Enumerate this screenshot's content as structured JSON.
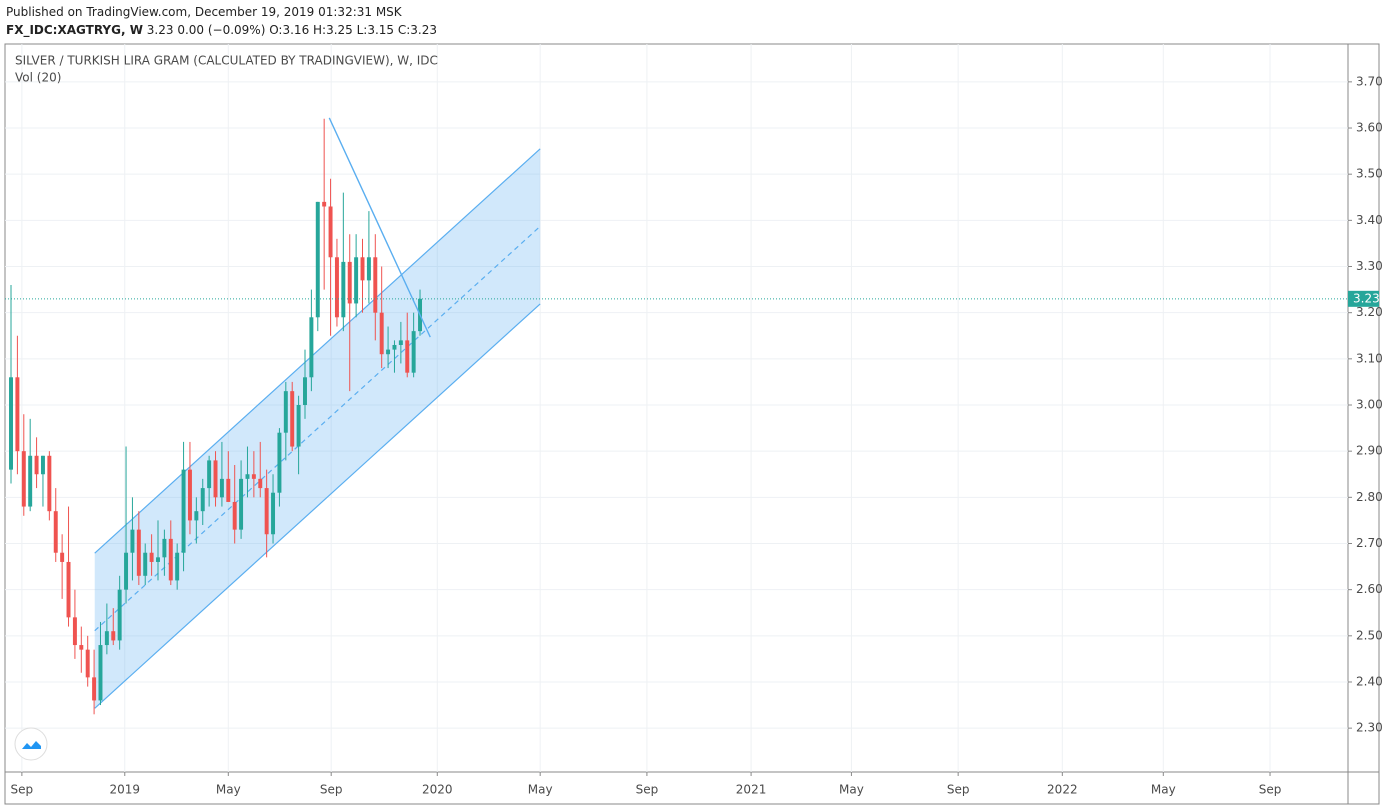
{
  "header": {
    "published": "Published on TradingView.com, December 19, 2019 01:32:31 MSK",
    "symbol": "FX_IDC:XAGTRYG, W",
    "quote": "3.23 0.00 (−0.09%) O:3.16 H:3.25 L:3.15 C:3.23"
  },
  "chart_data": {
    "type": "candlestick",
    "title": "SILVER / TURKISH LIRA GRAM (CALCULATED BY TRADINGVIEW), W, IDC",
    "subtitle": "Vol (20)",
    "up_color": "#26a69a",
    "down_color": "#ef5350",
    "grid": true,
    "open": [
      2.86,
      3.06,
      2.9,
      2.78,
      2.89,
      2.85,
      2.89,
      2.77,
      2.68,
      2.66,
      2.54,
      2.48,
      2.47,
      2.41,
      2.36,
      2.48,
      2.51,
      2.49,
      2.6,
      2.68,
      2.73,
      2.63,
      2.68,
      2.66,
      2.67,
      2.71,
      2.62,
      2.68,
      2.86,
      2.75,
      2.77,
      2.82,
      2.88,
      2.8,
      2.84,
      2.79,
      2.73,
      2.84,
      2.85,
      2.84,
      2.82,
      2.72,
      2.81,
      2.94,
      3.03,
      2.91,
      3.0,
      3.06,
      3.19,
      3.44,
      3.43,
      3.32,
      3.19,
      3.31,
      3.22,
      3.32,
      3.27,
      3.32,
      3.2,
      3.11,
      3.12,
      3.13,
      3.14,
      3.07,
      3.16
    ],
    "high": [
      3.26,
      3.15,
      2.98,
      2.97,
      2.93,
      2.89,
      2.9,
      2.82,
      2.72,
      2.78,
      2.6,
      2.52,
      2.5,
      2.47,
      2.53,
      2.57,
      2.56,
      2.63,
      2.91,
      2.8,
      2.77,
      2.7,
      2.72,
      2.75,
      2.73,
      2.75,
      2.7,
      2.92,
      2.92,
      2.8,
      2.84,
      2.89,
      2.9,
      2.92,
      2.9,
      2.87,
      2.88,
      2.91,
      2.9,
      2.92,
      2.86,
      2.85,
      2.95,
      3.05,
      3.05,
      3.02,
      3.12,
      3.25,
      3.44,
      3.62,
      3.49,
      3.36,
      3.46,
      3.37,
      3.37,
      3.36,
      3.42,
      3.37,
      3.3,
      3.17,
      3.14,
      3.18,
      3.2,
      3.2,
      3.25
    ],
    "low": [
      2.83,
      2.85,
      2.76,
      2.77,
      2.82,
      2.78,
      2.75,
      2.66,
      2.58,
      2.52,
      2.45,
      2.42,
      2.39,
      2.33,
      2.35,
      2.46,
      2.48,
      2.47,
      2.57,
      2.62,
      2.61,
      2.61,
      2.63,
      2.62,
      2.63,
      2.61,
      2.6,
      2.64,
      2.72,
      2.7,
      2.74,
      2.78,
      2.78,
      2.78,
      2.79,
      2.7,
      2.71,
      2.8,
      2.8,
      2.8,
      2.67,
      2.7,
      2.78,
      2.88,
      2.9,
      2.85,
      2.97,
      3.03,
      3.16,
      3.25,
      3.15,
      3.17,
      3.16,
      3.03,
      3.19,
      3.2,
      3.22,
      3.14,
      3.08,
      3.08,
      3.07,
      3.09,
      3.06,
      3.06,
      3.15
    ],
    "close": [
      3.06,
      2.9,
      2.78,
      2.89,
      2.85,
      2.89,
      2.77,
      2.68,
      2.66,
      2.54,
      2.48,
      2.47,
      2.41,
      2.36,
      2.48,
      2.51,
      2.49,
      2.6,
      2.68,
      2.73,
      2.63,
      2.68,
      2.66,
      2.67,
      2.71,
      2.62,
      2.68,
      2.86,
      2.75,
      2.77,
      2.82,
      2.88,
      2.8,
      2.84,
      2.79,
      2.73,
      2.84,
      2.85,
      2.84,
      2.82,
      2.72,
      2.81,
      2.94,
      3.03,
      2.91,
      3.0,
      3.06,
      3.19,
      3.44,
      3.43,
      3.32,
      3.19,
      3.31,
      3.22,
      3.32,
      3.27,
      3.32,
      3.2,
      3.11,
      3.12,
      3.13,
      3.14,
      3.07,
      3.16,
      3.23
    ],
    "xlim": [
      -0.94,
      209.2
    ],
    "xticks": [
      {
        "value": 1.7,
        "label": "Sep"
      },
      {
        "value": 17.8,
        "label": "2019"
      },
      {
        "value": 34.0,
        "label": "May"
      },
      {
        "value": 50.1,
        "label": "Sep"
      },
      {
        "value": 66.7,
        "label": "2020"
      },
      {
        "value": 82.8,
        "label": "May"
      },
      {
        "value": 99.5,
        "label": "Sep"
      },
      {
        "value": 115.8,
        "label": "2021"
      },
      {
        "value": 131.5,
        "label": "May"
      },
      {
        "value": 148.2,
        "label": "Sep"
      },
      {
        "value": 164.5,
        "label": "2022"
      },
      {
        "value": 180.3,
        "label": "May"
      },
      {
        "value": 197.0,
        "label": "Sep"
      }
    ],
    "ylim": [
      2.205,
      3.782
    ],
    "yticks": [
      {
        "value": 2.3,
        "label": "2.30"
      },
      {
        "value": 2.4,
        "label": "2.40"
      },
      {
        "value": 2.5,
        "label": "2.50"
      },
      {
        "value": 2.6,
        "label": "2.60"
      },
      {
        "value": 2.7,
        "label": "2.70"
      },
      {
        "value": 2.8,
        "label": "2.80"
      },
      {
        "value": 2.9,
        "label": "2.90"
      },
      {
        "value": 3.0,
        "label": "3.00"
      },
      {
        "value": 3.1,
        "label": "3.10"
      },
      {
        "value": 3.2,
        "label": "3.20"
      },
      {
        "value": 3.3,
        "label": "3.30"
      },
      {
        "value": 3.4,
        "label": "3.40"
      },
      {
        "value": 3.5,
        "label": "3.50"
      },
      {
        "value": 3.6,
        "label": "3.60"
      },
      {
        "value": 3.7,
        "label": "3.70"
      }
    ],
    "channel": {
      "x": [
        13.1,
        82.8
      ],
      "upper": [
        2.679,
        3.555
      ],
      "lower": [
        2.343,
        3.219
      ],
      "color": "#5aaef0"
    },
    "trend_line": {
      "x": [
        49.8,
        65.6
      ],
      "y": [
        3.622,
        3.147
      ],
      "color": "#5aaef0"
    }
  }
}
